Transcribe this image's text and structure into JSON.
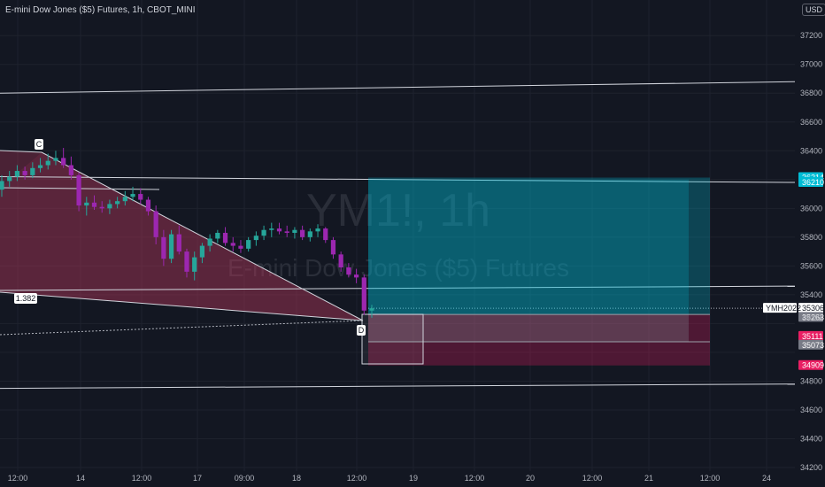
{
  "header": {
    "title": "E-mini Dow Jones ($5) Futures, 1h, CBOT_MINI",
    "currency": "USD"
  },
  "watermark": {
    "symbol": "YM1!, 1h",
    "name": "E-mini Dow Jones ($5) Futures"
  },
  "colors": {
    "background": "#131722",
    "up": "#26a69a",
    "down": "#9c27b0",
    "profit": "#00bcd4",
    "loss": "#e91e63",
    "pattern": "#b2375a"
  },
  "chart_data": {
    "type": "candlestick",
    "ylim": [
      34200,
      37300
    ],
    "y_ticks": [
      34200,
      34400,
      34600,
      34800,
      35000,
      35200,
      35400,
      35600,
      35800,
      36000,
      36200,
      36400,
      36600,
      36800,
      37000,
      37200
    ],
    "y_tick_labels": [
      "34200",
      "34400",
      "34600",
      "34800",
      "",
      "",
      "35400",
      "35600",
      "35800",
      "36000",
      "",
      "36400",
      "36600",
      "36800",
      "37000",
      "37200"
    ],
    "x_ticks": [
      "12:00",
      "14",
      "12:00",
      "17",
      "09:00",
      "18",
      "12:00",
      "19",
      "12:00",
      "20",
      "12:00",
      "21",
      "12:00",
      "24"
    ],
    "candles": [
      [
        36130,
        36230,
        36080,
        36190
      ],
      [
        36190,
        36260,
        36150,
        36220
      ],
      [
        36220,
        36300,
        36190,
        36260
      ],
      [
        36260,
        36290,
        36200,
        36230
      ],
      [
        36230,
        36320,
        36210,
        36280
      ],
      [
        36280,
        36350,
        36250,
        36300
      ],
      [
        36300,
        36380,
        36270,
        36330
      ],
      [
        36330,
        36400,
        36300,
        36350
      ],
      [
        36350,
        36420,
        36280,
        36300
      ],
      [
        36300,
        36360,
        36200,
        36230
      ],
      [
        36230,
        36250,
        35980,
        36020
      ],
      [
        36020,
        36080,
        35950,
        36040
      ],
      [
        36040,
        36090,
        35990,
        36010
      ],
      [
        36010,
        36050,
        35970,
        36000
      ],
      [
        36000,
        36060,
        35960,
        36030
      ],
      [
        36030,
        36080,
        36000,
        36050
      ],
      [
        36050,
        36120,
        36020,
        36080
      ],
      [
        36080,
        36150,
        36050,
        36100
      ],
      [
        36100,
        36140,
        36030,
        36060
      ],
      [
        36060,
        36080,
        35950,
        35980
      ],
      [
        35980,
        36020,
        35750,
        35800
      ],
      [
        35800,
        35850,
        35600,
        35650
      ],
      [
        35650,
        35850,
        35620,
        35820
      ],
      [
        35820,
        35880,
        35680,
        35700
      ],
      [
        35700,
        35720,
        35520,
        35560
      ],
      [
        35560,
        35700,
        35500,
        35660
      ],
      [
        35660,
        35760,
        35620,
        35740
      ],
      [
        35740,
        35820,
        35700,
        35790
      ],
      [
        35790,
        35850,
        35760,
        35830
      ],
      [
        35830,
        35870,
        35740,
        35760
      ],
      [
        35760,
        35800,
        35700,
        35740
      ],
      [
        35740,
        35780,
        35690,
        35720
      ],
      [
        35720,
        35800,
        35700,
        35780
      ],
      [
        35780,
        35840,
        35740,
        35810
      ],
      [
        35810,
        35880,
        35780,
        35850
      ],
      [
        35850,
        35900,
        35800,
        35860
      ],
      [
        35860,
        35900,
        35820,
        35840
      ],
      [
        35840,
        35880,
        35800,
        35830
      ],
      [
        35830,
        35870,
        35790,
        35850
      ],
      [
        35850,
        35880,
        35780,
        35800
      ],
      [
        35800,
        35860,
        35770,
        35840
      ],
      [
        35840,
        35890,
        35800,
        35860
      ],
      [
        35860,
        35870,
        35760,
        35780
      ],
      [
        35780,
        35800,
        35650,
        35680
      ],
      [
        35680,
        35700,
        35560,
        35590
      ],
      [
        35590,
        35620,
        35520,
        35540
      ],
      [
        35540,
        35580,
        35480,
        35520
      ],
      [
        35520,
        35540,
        35260,
        35290
      ],
      [
        35290,
        35330,
        35240,
        35306
      ]
    ],
    "annotations": {
      "point_c": "C",
      "point_d": "D",
      "fib_ratio": "1.382",
      "contract_label": "YMH2022",
      "countdown": "49:03",
      "price_tags": [
        {
          "price": "36214",
          "value": 36214,
          "color": "#00bcd4"
        },
        {
          "price": "36210",
          "value": 36180,
          "color": "#00bcd4"
        },
        {
          "price": "35306",
          "value": 35306,
          "color": "#ffffff"
        },
        {
          "price": "35263",
          "value": 35243,
          "color": "#787b86"
        },
        {
          "price": "35111",
          "value": 35111,
          "color": "#e91e63"
        },
        {
          "price": "35073",
          "value": 35050,
          "color": "#787b86"
        },
        {
          "price": "34909",
          "value": 34909,
          "color": "#e91e63"
        }
      ]
    },
    "horizontal_levels": [
      36880,
      36180,
      35460,
      34780
    ],
    "trade": {
      "entry": 35263,
      "target": 36214,
      "stop": 34909,
      "lower_entry": 35073
    },
    "grid": true
  }
}
